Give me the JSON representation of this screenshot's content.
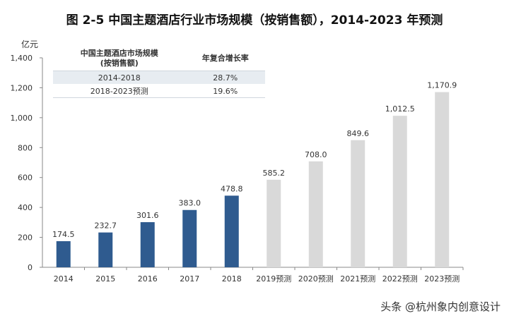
{
  "chart_data": {
    "type": "bar",
    "title": "图 2-5 中国主题酒店行业市场规模（按销售额），2014-2023 年预测",
    "ylabel": "亿元",
    "ylim": [
      0,
      1400
    ],
    "yticks": [
      "0",
      "200",
      "400",
      "600",
      "800",
      "1,000",
      "1,200",
      "1,400"
    ],
    "categories": [
      "2014",
      "2015",
      "2016",
      "2017",
      "2018",
      "2019预测",
      "2020预测",
      "2021预测",
      "2022预测",
      "2023预测"
    ],
    "values": [
      174.5,
      232.7,
      301.6,
      383.0,
      478.8,
      585.2,
      708.0,
      849.6,
      1012.5,
      1170.9
    ],
    "data_labels": [
      "174.5",
      "232.7",
      "301.6",
      "383.0",
      "478.8",
      "585.2",
      "708.0",
      "849.6",
      "1,012.5",
      "1,170.9"
    ],
    "colors": {
      "actual": "#2f5b8f",
      "forecast": "#d9d9d9"
    },
    "grid": false,
    "table": {
      "headers": [
        "中国主题酒店市场规模\n(按销售额)",
        "年复合增长率"
      ],
      "rows": [
        [
          "2014-2018",
          "28.7%"
        ],
        [
          "2018-2023预测",
          "19.6%"
        ]
      ]
    }
  },
  "credit": "头条 @杭州象内创意设计"
}
